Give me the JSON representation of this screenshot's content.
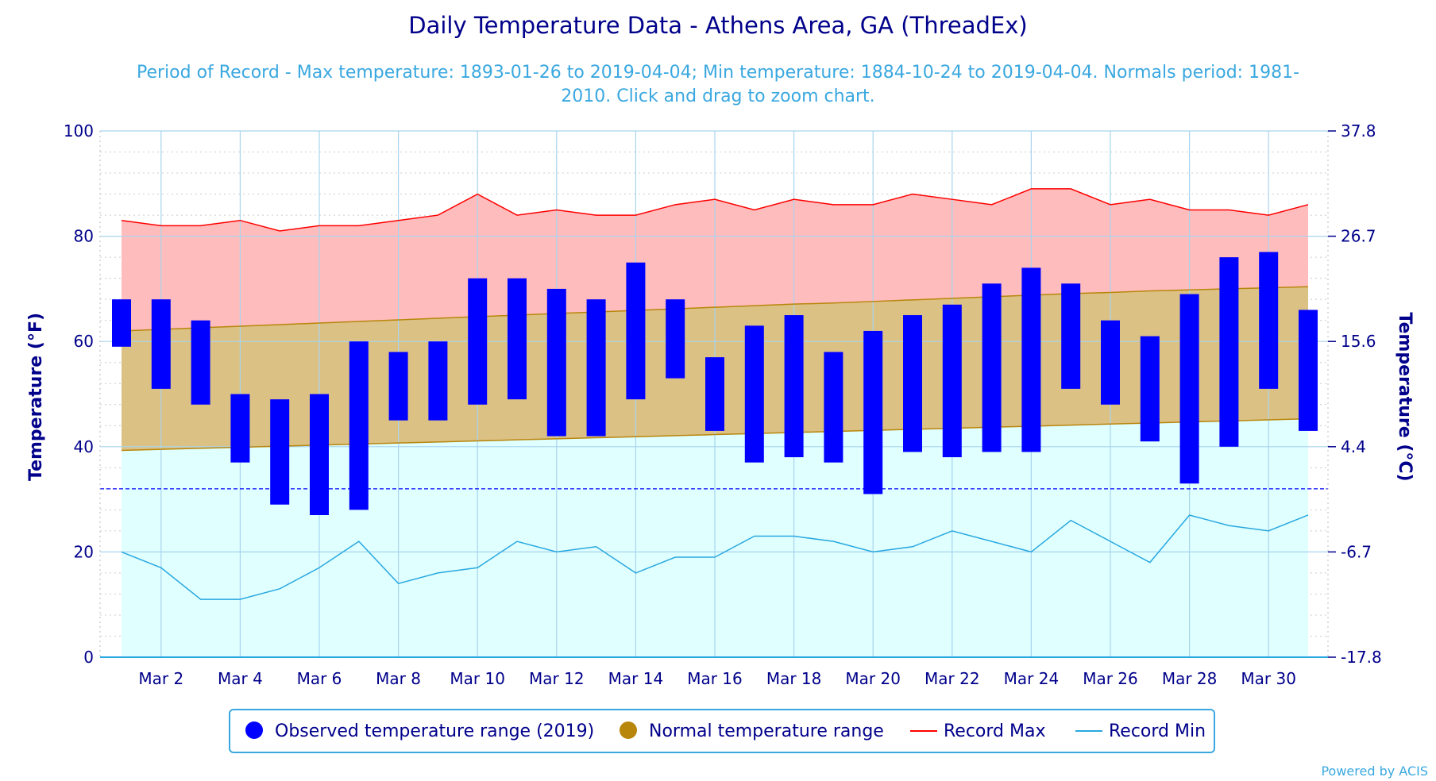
{
  "chart_data": {
    "type": "bar",
    "title": "Daily Temperature Data - Athens Area, GA (ThreadEx)",
    "subtitle_lines": [
      "Period of Record - Max temperature: 1893-01-26 to 2019-04-04; Min temperature: 1884-10-24 to 2019-04-04. Normals period: 1981-",
      "2010. Click and drag to zoom chart."
    ],
    "ylabel": "Temperature (°F)",
    "ylabel_right": "Temperature (°C)",
    "ylim": [
      0,
      100
    ],
    "y_ticks": [
      0,
      20,
      40,
      60,
      80,
      100
    ],
    "y_ticks_right": [
      "-17.8",
      "-6.7",
      "4.4",
      "15.6",
      "26.7",
      "37.8"
    ],
    "x_ticks": [
      {
        "day": 2,
        "label": "Mar 2"
      },
      {
        "day": 4,
        "label": "Mar 4"
      },
      {
        "day": 6,
        "label": "Mar 6"
      },
      {
        "day": 8,
        "label": "Mar 8"
      },
      {
        "day": 10,
        "label": "Mar 10"
      },
      {
        "day": 12,
        "label": "Mar 12"
      },
      {
        "day": 14,
        "label": "Mar 14"
      },
      {
        "day": 16,
        "label": "Mar 16"
      },
      {
        "day": 18,
        "label": "Mar 18"
      },
      {
        "day": 20,
        "label": "Mar 20"
      },
      {
        "day": 22,
        "label": "Mar 22"
      },
      {
        "day": 24,
        "label": "Mar 24"
      },
      {
        "day": 26,
        "label": "Mar 26"
      },
      {
        "day": 28,
        "label": "Mar 28"
      },
      {
        "day": 30,
        "label": "Mar 30"
      }
    ],
    "days": [
      1,
      2,
      3,
      4,
      5,
      6,
      7,
      8,
      9,
      10,
      11,
      12,
      13,
      14,
      15,
      16,
      17,
      18,
      19,
      20,
      21,
      22,
      23,
      24,
      25,
      26,
      27,
      28,
      29,
      30,
      31
    ],
    "freezing_line": 32,
    "series": [
      {
        "name": "Observed temperature range (2019)",
        "color": "#0000ff",
        "low": [
          59,
          51,
          48,
          37,
          29,
          27,
          28,
          45,
          45,
          48,
          49,
          42,
          42,
          49,
          53,
          43,
          37,
          38,
          37,
          31,
          39,
          38,
          39,
          39,
          51,
          48,
          41,
          33,
          40,
          51,
          43
        ],
        "high": [
          68,
          68,
          64,
          50,
          49,
          50,
          60,
          58,
          60,
          72,
          72,
          70,
          68,
          75,
          68,
          57,
          63,
          65,
          58,
          62,
          65,
          67,
          71,
          74,
          71,
          64,
          61,
          69,
          76,
          77,
          66
        ]
      },
      {
        "name": "Normal temperature range",
        "color": "#b8860b",
        "low": [
          39.3,
          39.5,
          39.7,
          39.9,
          40.1,
          40.3,
          40.5,
          40.7,
          40.9,
          41.1,
          41.3,
          41.5,
          41.7,
          41.9,
          42.1,
          42.3,
          42.5,
          42.7,
          42.9,
          43.1,
          43.3,
          43.5,
          43.7,
          43.9,
          44.1,
          44.3,
          44.5,
          44.7,
          44.9,
          45.1,
          45.3
        ],
        "high": [
          62,
          62.3,
          62.6,
          62.9,
          63.2,
          63.5,
          63.8,
          64.1,
          64.4,
          64.7,
          65,
          65.3,
          65.6,
          65.9,
          66.2,
          66.5,
          66.8,
          67.1,
          67.3,
          67.6,
          67.9,
          68.2,
          68.5,
          68.8,
          69.1,
          69.3,
          69.6,
          69.8,
          70.0,
          70.2,
          70.4
        ]
      },
      {
        "name": "Record Max",
        "color": "#ff0000",
        "values": [
          83,
          82,
          82,
          83,
          81,
          82,
          82,
          83,
          84,
          88,
          84,
          85,
          84,
          84,
          86,
          87,
          85,
          87,
          86,
          86,
          88,
          87,
          86,
          89,
          89,
          86,
          87,
          85,
          85,
          84,
          86
        ]
      },
      {
        "name": "Record Min",
        "color": "#29a8e0",
        "values": [
          20,
          17,
          11,
          11,
          13,
          17,
          22,
          14,
          16,
          17,
          22,
          20,
          21,
          16,
          19,
          19,
          23,
          23,
          22,
          20,
          21,
          24,
          22,
          20,
          26,
          22,
          18,
          27,
          25,
          24,
          27
        ]
      }
    ],
    "legend_position": "bottom-center",
    "grid": true
  },
  "legend": [
    {
      "label": "Observed temperature range (2019)",
      "symbol": "circle",
      "color": "#0000ff"
    },
    {
      "label": "Normal temperature range",
      "symbol": "circle",
      "color": "#b8860b"
    },
    {
      "label": "Record Max",
      "symbol": "line",
      "color": "#ff0000"
    },
    {
      "label": "Record Min",
      "symbol": "line",
      "color": "#29a8e0"
    }
  ],
  "credit": "Powered by ACIS"
}
